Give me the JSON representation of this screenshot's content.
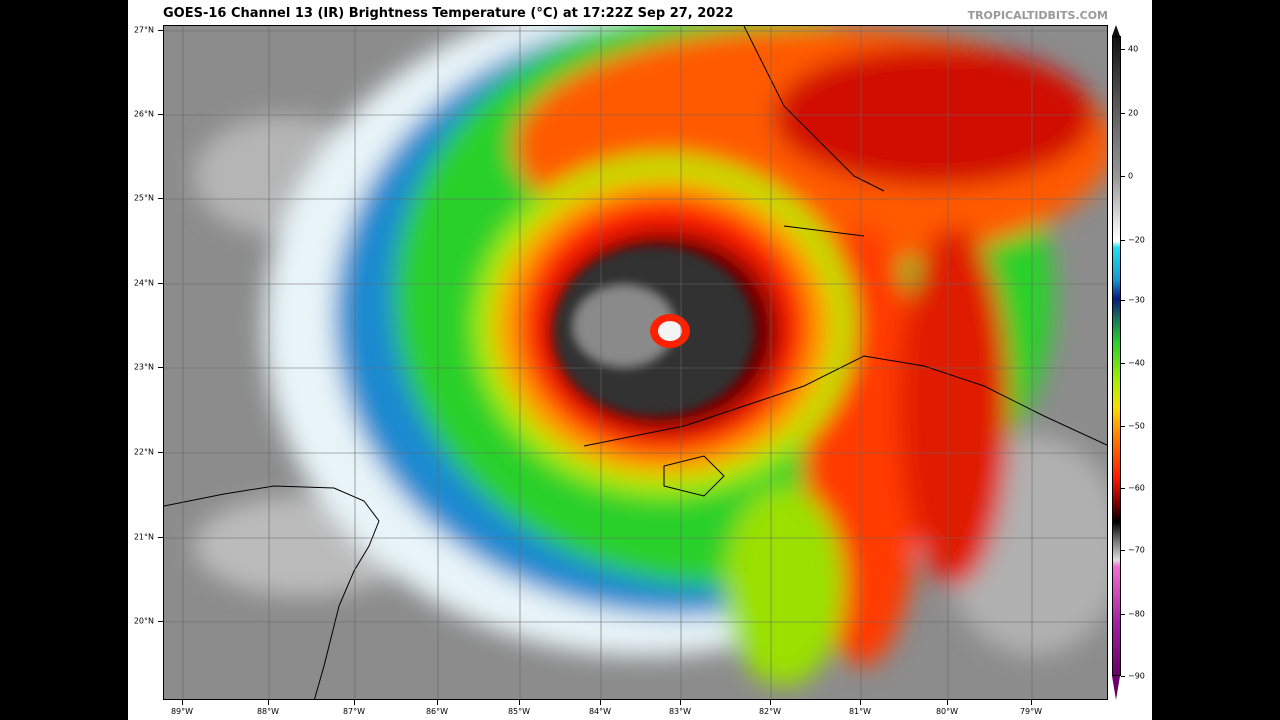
{
  "title": "GOES-16 Channel 13 (IR) Brightness Temperature (°C) at 17:22Z Sep 27, 2022",
  "credit": "TROPICALTIDBITS.COM",
  "lat_labels": [
    "27°N",
    "26°N",
    "25°N",
    "24°N",
    "23°N",
    "22°N",
    "21°N",
    "20°N"
  ],
  "lon_labels": [
    "89°W",
    "88°W",
    "87°W",
    "86°W",
    "85°W",
    "84°W",
    "83°W",
    "82°W",
    "81°W",
    "80°W",
    "79°W"
  ],
  "colorbar": {
    "ticks": [
      "40",
      "20",
      "0",
      "−20",
      "−30",
      "−40",
      "−50",
      "−60",
      "−70",
      "−80",
      "−90"
    ],
    "range": [
      -90,
      40
    ],
    "colors": {
      "warm": "#111111",
      "cold_start": "#1fe0f0",
      "deep_blue": "#0a1a80",
      "green": "#2cd02c",
      "yellow": "#f8e000",
      "red": "#ff1a00",
      "magenta": "#a020a0"
    }
  }
}
